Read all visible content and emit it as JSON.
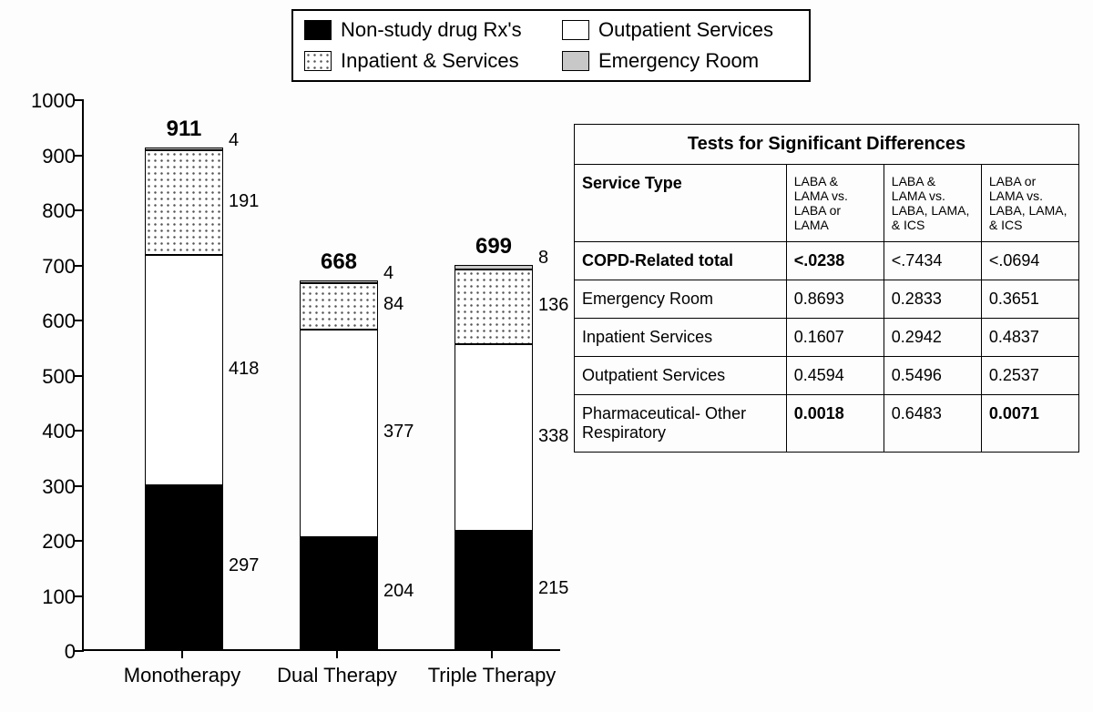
{
  "legend": {
    "items": [
      "Non-study drug Rx's",
      "Outpatient Services",
      "Inpatient & Services",
      "Emergency Room"
    ]
  },
  "chart": {
    "type": "stacked-bar",
    "ymax": 1000,
    "ytick_step": 100,
    "categories": [
      "Monotherapy",
      "Dual Therapy",
      "Triple Therapy"
    ],
    "series": [
      "Non-study drug Rx's",
      "Outpatient Services",
      "Inpatient & Services",
      "Emergency Room"
    ],
    "fills": [
      "black",
      "white",
      "dots",
      "grey"
    ],
    "bars": [
      {
        "label": "Monotherapy",
        "total": 911,
        "values": [
          297,
          418,
          191,
          4
        ]
      },
      {
        "label": "Dual Therapy",
        "total": 668,
        "values": [
          204,
          377,
          84,
          4
        ]
      },
      {
        "label": "Triple Therapy",
        "total": 699,
        "values": [
          215,
          338,
          136,
          8
        ]
      }
    ]
  },
  "table": {
    "title": "Tests for Significant Differences",
    "col0": "Service Type",
    "cols": [
      "LABA & LAMA vs. LABA or LAMA",
      "LABA & LAMA vs. LABA, LAMA, & ICS",
      "LABA or LAMA vs. LABA, LAMA, & ICS"
    ],
    "rows": [
      {
        "label": "COPD-Related total",
        "bold_label": true,
        "vals": [
          "<.0238",
          "<.7434",
          "<.0694"
        ],
        "bold_idx": [
          0
        ]
      },
      {
        "label": "Emergency Room",
        "vals": [
          "0.8693",
          "0.2833",
          "0.3651"
        ],
        "bold_idx": []
      },
      {
        "label": "Inpatient Services",
        "vals": [
          "0.1607",
          "0.2942",
          "0.4837"
        ],
        "bold_idx": []
      },
      {
        "label": "Outpatient Services",
        "vals": [
          "0.4594",
          "0.5496",
          "0.2537"
        ],
        "bold_idx": []
      },
      {
        "label": "Pharmaceutical- Other Respiratory",
        "vals": [
          "0.0018",
          "0.6483",
          "0.0071"
        ],
        "bold_idx": [
          0,
          2
        ]
      }
    ]
  }
}
